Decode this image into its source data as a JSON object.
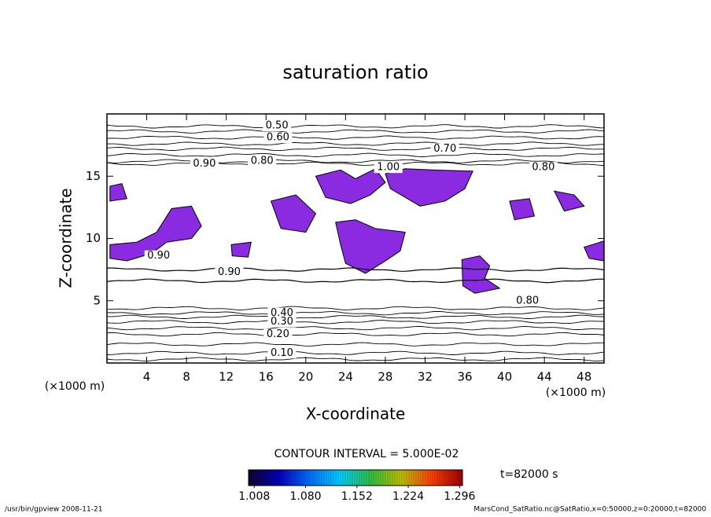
{
  "chart_data": {
    "type": "contour",
    "title": "saturation ratio",
    "xlabel": "X-coordinate",
    "ylabel": "Z-coordinate",
    "x_units": "(×1000 m)",
    "xlim": [
      0,
      50
    ],
    "ylim": [
      0,
      20
    ],
    "xticks": [
      4,
      8,
      12,
      16,
      20,
      24,
      28,
      32,
      36,
      40,
      44,
      48
    ],
    "yticks": [
      5,
      10,
      15
    ],
    "region_color": "#8a2be2",
    "contour_interval_text": "CONTOUR INTERVAL = 5.000E-02",
    "time_label": "t=82000 s",
    "contour_lines": [
      {
        "level": 0.05,
        "y": 0.3
      },
      {
        "level": 0.1,
        "y": 0.8
      },
      {
        "level": 0.15,
        "y": 1.5
      },
      {
        "level": 0.2,
        "y": 2.3
      },
      {
        "level": 0.25,
        "y": 2.8
      },
      {
        "level": 0.3,
        "y": 3.3
      },
      {
        "level": 0.35,
        "y": 3.7
      },
      {
        "level": 0.4,
        "y": 4.0
      },
      {
        "level": 0.45,
        "y": 4.4
      },
      {
        "level": 0.9,
        "y": 6.6
      },
      {
        "level": 0.95,
        "y": 7.5
      },
      {
        "level": 0.85,
        "y": 16.0
      },
      {
        "level": 0.8,
        "y": 16.2
      },
      {
        "level": 0.75,
        "y": 16.7
      },
      {
        "level": 0.7,
        "y": 17.2
      },
      {
        "level": 0.65,
        "y": 17.6
      },
      {
        "level": 0.6,
        "y": 18.1
      },
      {
        "level": 0.55,
        "y": 18.6
      },
      {
        "level": 0.5,
        "y": 19.0
      }
    ],
    "contour_labels": [
      {
        "label": "0.50",
        "x": 17.1,
        "y": 19.05
      },
      {
        "label": "0.60",
        "x": 17.2,
        "y": 18.1
      },
      {
        "label": "0.70",
        "x": 34.0,
        "y": 17.2
      },
      {
        "label": "0.80",
        "x": 15.6,
        "y": 16.2
      },
      {
        "label": "0.90",
        "x": 9.8,
        "y": 16.0
      },
      {
        "label": "1.00",
        "x": 28.3,
        "y": 15.7
      },
      {
        "label": "0.80",
        "x": 43.9,
        "y": 15.7
      },
      {
        "label": "0.90",
        "x": 5.2,
        "y": 8.6
      },
      {
        "label": "0.90",
        "x": 12.3,
        "y": 7.3
      },
      {
        "label": "0.80",
        "x": 42.3,
        "y": 5.0
      },
      {
        "label": "0.40",
        "x": 17.6,
        "y": 4.0
      },
      {
        "label": "0.30",
        "x": 17.6,
        "y": 3.3
      },
      {
        "label": "0.20",
        "x": 17.2,
        "y": 2.3
      },
      {
        "label": "0.10",
        "x": 17.6,
        "y": 0.8
      }
    ],
    "regions": [
      {
        "x": [
          0.3,
          3,
          5,
          6.5,
          8.5,
          9.5,
          8.5,
          6,
          4.5,
          2,
          0.3
        ],
        "y": [
          9.5,
          9.7,
          10.5,
          12.4,
          12.6,
          11,
          10,
          9.7,
          8.8,
          8.2,
          8.4
        ]
      },
      {
        "x": [
          21,
          23.5,
          25,
          27,
          28,
          26.5,
          24.5,
          22
        ],
        "y": [
          15,
          15.5,
          14.8,
          15.6,
          14.5,
          13.5,
          12.8,
          13.3
        ]
      },
      {
        "x": [
          28,
          30,
          33,
          36.8,
          36,
          34,
          31.5,
          30,
          28.5
        ],
        "y": [
          15.2,
          15.6,
          15.5,
          15.4,
          14,
          13,
          12.6,
          13.3,
          14
        ]
      },
      {
        "x": [
          35.7,
          37.5,
          38.5,
          38,
          39.5,
          37,
          35.8
        ],
        "y": [
          8.3,
          8.6,
          7.8,
          6.8,
          6,
          5.6,
          6.2
        ]
      },
      {
        "x": [
          45,
          47,
          48,
          46
        ],
        "y": [
          13.8,
          13.5,
          12.6,
          12.2
        ]
      },
      {
        "x": [
          48,
          50,
          50,
          48.5
        ],
        "y": [
          9.3,
          9.8,
          8.2,
          8.4
        ]
      },
      {
        "x": [
          23,
          25,
          27,
          30,
          29.5,
          28,
          26,
          24,
          23.5
        ],
        "y": [
          11.3,
          11.5,
          10.8,
          10.5,
          9,
          8.2,
          7.2,
          8,
          9.5
        ]
      },
      {
        "x": [
          0.3,
          1.5,
          2,
          0.3
        ],
        "y": [
          14.2,
          14.4,
          13.2,
          13
        ]
      },
      {
        "x": [
          40.5,
          42.5,
          43,
          41
        ],
        "y": [
          13,
          13.2,
          11.8,
          11.5
        ]
      },
      {
        "x": [
          16.5,
          19,
          21,
          20,
          17.5
        ],
        "y": [
          13,
          13.5,
          12,
          10.5,
          10.8
        ]
      },
      {
        "x": [
          12.5,
          14.5,
          14.2,
          12.6
        ],
        "y": [
          9.5,
          9.7,
          8.5,
          8.6
        ]
      }
    ],
    "colorbar": {
      "lim": [
        1.0,
        1.3
      ],
      "ticks": [
        {
          "value": 1.008,
          "label": "1.008"
        },
        {
          "value": 1.08,
          "label": "1.080"
        },
        {
          "value": 1.152,
          "label": "1.152"
        },
        {
          "value": 1.224,
          "label": "1.224"
        },
        {
          "value": 1.296,
          "label": "1.296"
        }
      ],
      "colormap": [
        "#10002a",
        "#0000c0",
        "#0070ff",
        "#00d0ff",
        "#30c040",
        "#c0c000",
        "#ff4000",
        "#a00000"
      ]
    },
    "footer_left": "/usr/bin/gpview  2008-11-21",
    "footer_right": "MarsCond_SatRatio.nc@SatRatio,x=0:50000,z=0:20000,t=82000"
  }
}
